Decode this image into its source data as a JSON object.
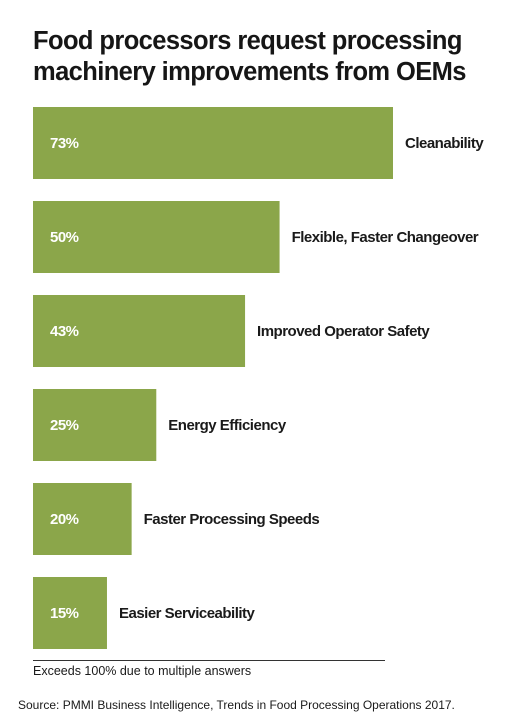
{
  "chart_data": {
    "type": "bar",
    "orientation": "horizontal",
    "title": "Food processors request processing machinery improvements from OEMs",
    "categories": [
      "Cleanability",
      "Flexible, Faster Changeover",
      "Improved Operator Safety",
      "Energy Efficiency",
      "Faster Processing Speeds",
      "Easier Serviceability"
    ],
    "values": [
      73,
      50,
      43,
      25,
      20,
      15
    ],
    "value_labels": [
      "73%",
      "50%",
      "43%",
      "25%",
      "20%",
      "15%"
    ],
    "xlim": [
      0,
      100
    ],
    "grid": false,
    "legend": "none",
    "bar_color": "#8ba64a"
  },
  "footnote": "Exceeds 100% due to multiple answers",
  "source": "Source: PMMI Business Intelligence, Trends in Food Processing Operations 2017."
}
